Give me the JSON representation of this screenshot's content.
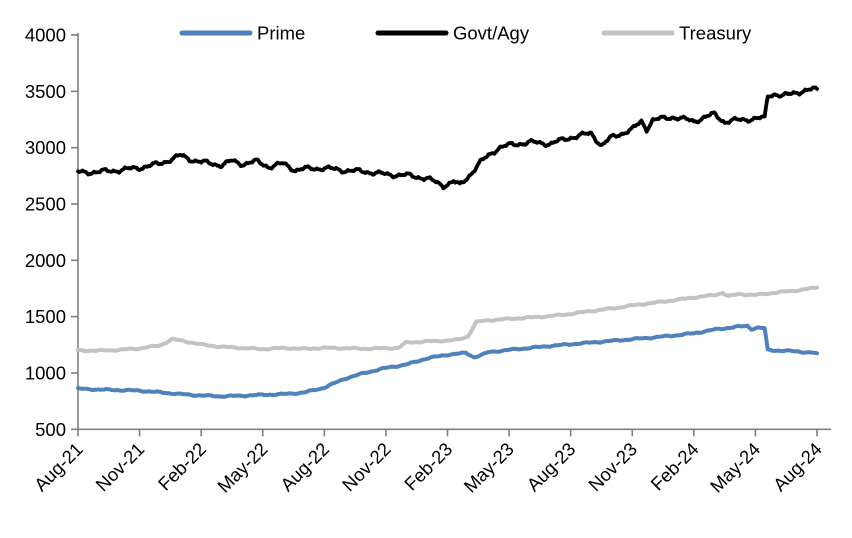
{
  "chart_data": {
    "type": "line",
    "title": "",
    "xlabel": "",
    "ylabel": "",
    "x_unit": "months since Aug-21",
    "xlim": [
      0,
      36
    ],
    "ylim": [
      500,
      4000
    ],
    "grid": false,
    "legend_position": "top",
    "axis_color": "#7f7f7f",
    "label_color": "#000000",
    "background": "#ffffff",
    "yticks": [
      4000,
      3500,
      3000,
      2500,
      2000,
      1500,
      1000,
      500
    ],
    "xticks": {
      "positions": [
        0,
        3,
        6,
        9,
        12,
        15,
        18,
        21,
        24,
        27,
        30,
        33,
        36
      ],
      "labels": [
        "Aug-21",
        "Nov-21",
        "Feb-22",
        "May-22",
        "Aug-22",
        "Nov-22",
        "Feb-23",
        "May-23",
        "Aug-23",
        "Nov-23",
        "Feb-24",
        "May-24",
        "Aug-24"
      ]
    },
    "series": [
      {
        "name": "Prime",
        "color": "#4f81bd",
        "points": [
          [
            0,
            860
          ],
          [
            1,
            853
          ],
          [
            2,
            848
          ],
          [
            3,
            843
          ],
          [
            4,
            828
          ],
          [
            5,
            812
          ],
          [
            6,
            800
          ],
          [
            7,
            793
          ],
          [
            8,
            798
          ],
          [
            9,
            806
          ],
          [
            10,
            812
          ],
          [
            11,
            826
          ],
          [
            12,
            870
          ],
          [
            13,
            950
          ],
          [
            14,
            1002
          ],
          [
            15,
            1045
          ],
          [
            16,
            1075
          ],
          [
            17,
            1130
          ],
          [
            18,
            1162
          ],
          [
            18.9,
            1178
          ],
          [
            19.3,
            1140
          ],
          [
            19.8,
            1168
          ],
          [
            20,
            1185
          ],
          [
            21,
            1205
          ],
          [
            22,
            1222
          ],
          [
            23,
            1240
          ],
          [
            24,
            1255
          ],
          [
            25,
            1270
          ],
          [
            26,
            1285
          ],
          [
            27,
            1300
          ],
          [
            28,
            1315
          ],
          [
            29,
            1332
          ],
          [
            30,
            1352
          ],
          [
            31,
            1385
          ],
          [
            32,
            1408
          ],
          [
            32.6,
            1418
          ],
          [
            32.8,
            1390
          ],
          [
            33.1,
            1402
          ],
          [
            33.45,
            1396
          ],
          [
            33.6,
            1205
          ],
          [
            34,
            1200
          ],
          [
            35,
            1192
          ],
          [
            36,
            1175
          ]
        ]
      },
      {
        "name": "Govt/Agy",
        "color": "#000000",
        "points": [
          [
            0,
            2780
          ],
          [
            1,
            2785
          ],
          [
            2,
            2800
          ],
          [
            3,
            2822
          ],
          [
            4,
            2858
          ],
          [
            5,
            2930
          ],
          [
            5.5,
            2895
          ],
          [
            6,
            2872
          ],
          [
            7,
            2845
          ],
          [
            7.5,
            2882
          ],
          [
            8,
            2855
          ],
          [
            8.7,
            2878
          ],
          [
            9.3,
            2830
          ],
          [
            10,
            2858
          ],
          [
            10.6,
            2800
          ],
          [
            11,
            2812
          ],
          [
            12,
            2818
          ],
          [
            13,
            2798
          ],
          [
            14,
            2788
          ],
          [
            15,
            2762
          ],
          [
            16,
            2755
          ],
          [
            17,
            2728
          ],
          [
            17.8,
            2662
          ],
          [
            18.3,
            2700
          ],
          [
            18.6,
            2665
          ],
          [
            19,
            2740
          ],
          [
            19.6,
            2870
          ],
          [
            20,
            2930
          ],
          [
            20.5,
            3000
          ],
          [
            21,
            3022
          ],
          [
            22,
            3048
          ],
          [
            23,
            3035
          ],
          [
            24,
            3090
          ],
          [
            25,
            3128
          ],
          [
            25.5,
            3018
          ],
          [
            26,
            3092
          ],
          [
            27,
            3162
          ],
          [
            27.45,
            3232
          ],
          [
            27.7,
            3165
          ],
          [
            28,
            3245
          ],
          [
            29,
            3272
          ],
          [
            30,
            3235
          ],
          [
            31,
            3298
          ],
          [
            31.5,
            3228
          ],
          [
            32,
            3242
          ],
          [
            33,
            3258
          ],
          [
            33.45,
            3262
          ],
          [
            33.6,
            3462
          ],
          [
            34,
            3478
          ],
          [
            34.3,
            3455
          ],
          [
            35,
            3492
          ],
          [
            36,
            3522
          ]
        ]
      },
      {
        "name": "Treasury",
        "color": "#c3c3c3",
        "points": [
          [
            0,
            1200
          ],
          [
            1,
            1198
          ],
          [
            2,
            1205
          ],
          [
            3,
            1218
          ],
          [
            4,
            1245
          ],
          [
            4.6,
            1300
          ],
          [
            5.2,
            1282
          ],
          [
            6,
            1252
          ],
          [
            7,
            1232
          ],
          [
            8,
            1222
          ],
          [
            9,
            1212
          ],
          [
            10,
            1222
          ],
          [
            11,
            1214
          ],
          [
            12,
            1222
          ],
          [
            13,
            1220
          ],
          [
            14,
            1215
          ],
          [
            15,
            1220
          ],
          [
            15.6,
            1222
          ],
          [
            16,
            1270
          ],
          [
            17,
            1280
          ],
          [
            18,
            1288
          ],
          [
            18.5,
            1295
          ],
          [
            19,
            1325
          ],
          [
            19.4,
            1452
          ],
          [
            20,
            1468
          ],
          [
            21,
            1480
          ],
          [
            22,
            1492
          ],
          [
            23,
            1505
          ],
          [
            24,
            1525
          ],
          [
            25,
            1550
          ],
          [
            26,
            1572
          ],
          [
            27,
            1600
          ],
          [
            28,
            1622
          ],
          [
            29,
            1645
          ],
          [
            30,
            1670
          ],
          [
            31,
            1692
          ],
          [
            31.4,
            1712
          ],
          [
            31.7,
            1682
          ],
          [
            32.2,
            1700
          ],
          [
            33,
            1692
          ],
          [
            34,
            1714
          ],
          [
            35,
            1732
          ],
          [
            36,
            1758
          ]
        ]
      }
    ]
  }
}
